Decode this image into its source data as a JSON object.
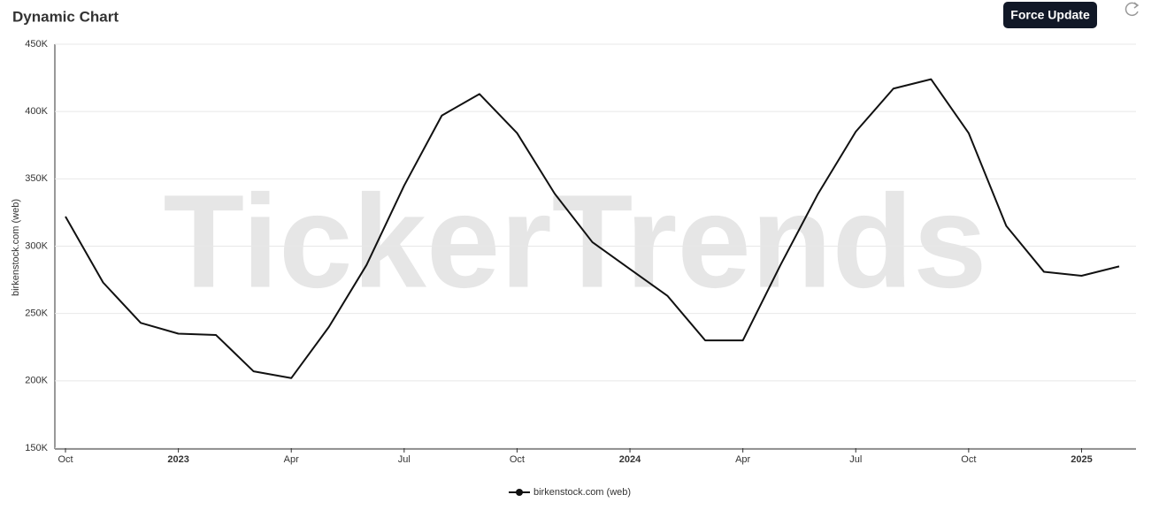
{
  "chart_data": {
    "type": "line",
    "title": "Dynamic Chart",
    "button": "Force Update",
    "watermark": "TickerTrends",
    "y_label": "birkenstock.com  (web)",
    "x": [
      "2022-10",
      "2022-11",
      "2022-12",
      "2023-01",
      "2023-02",
      "2023-03",
      "2023-04",
      "2023-05",
      "2023-06",
      "2023-07",
      "2023-08",
      "2023-09",
      "2023-10",
      "2023-11",
      "2023-12",
      "2024-01",
      "2024-02",
      "2024-03",
      "2024-04",
      "2024-05",
      "2024-06",
      "2024-07",
      "2024-08",
      "2024-09",
      "2024-10",
      "2024-11",
      "2024-12",
      "2025-01",
      "2025-02"
    ],
    "series": [
      {
        "name": "birkenstock.com  (web)",
        "color": "#111111",
        "values": [
          322000,
          273000,
          243000,
          235000,
          234000,
          207000,
          202000,
          240000,
          286000,
          345000,
          397000,
          413000,
          384000,
          339000,
          303000,
          283000,
          263000,
          230000,
          230000,
          286000,
          339000,
          385000,
          417000,
          424000,
          384000,
          315000,
          281000,
          278000,
          285000
        ]
      }
    ],
    "ylim": [
      150000,
      450000
    ],
    "yticks": [
      {
        "value": 150000,
        "label": "150K"
      },
      {
        "value": 200000,
        "label": "200K"
      },
      {
        "value": 250000,
        "label": "250K"
      },
      {
        "value": 300000,
        "label": "300K"
      },
      {
        "value": 350000,
        "label": "350K"
      },
      {
        "value": 400000,
        "label": "400K"
      },
      {
        "value": 450000,
        "label": "450K"
      }
    ],
    "xticks": [
      {
        "value": "2022-10",
        "label": "Oct"
      },
      {
        "value": "2023-01",
        "label": "2023"
      },
      {
        "value": "2023-04",
        "label": "Apr"
      },
      {
        "value": "2023-07",
        "label": "Jul"
      },
      {
        "value": "2023-10",
        "label": "Oct"
      },
      {
        "value": "2024-01",
        "label": "2024"
      },
      {
        "value": "2024-04",
        "label": "Apr"
      },
      {
        "value": "2024-07",
        "label": "Jul"
      },
      {
        "value": "2024-10",
        "label": "Oct"
      },
      {
        "value": "2025-01",
        "label": "2025"
      }
    ],
    "grid": true
  }
}
